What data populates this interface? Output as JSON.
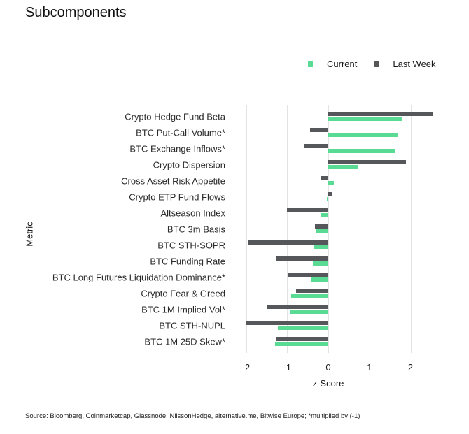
{
  "title": "Subcomponents",
  "legend": [
    {
      "label": "Current",
      "color": "#5ADB93"
    },
    {
      "label": "Last Week",
      "color": "#55575A"
    }
  ],
  "source": "Source: Bloomberg, Coinmarketcap, Glassnode, NilssonHedge, alternative.me, Bitwise Europe; *multiplied by (-1)",
  "chart_data": {
    "type": "bar",
    "orientation": "horizontal",
    "title": "Subcomponents",
    "xlabel": "z-Score",
    "ylabel": "Metric",
    "xlim": [
      -2.2,
      2.6
    ],
    "xticks": [
      -2,
      -1,
      0,
      1,
      2
    ],
    "grid": true,
    "legend_position": "top-right",
    "categories": [
      "Crypto Hedge Fund Beta",
      "BTC Put-Call Volume*",
      "BTC Exchange Inflows*",
      "Crypto Dispersion",
      "Cross Asset Risk Appetite",
      "Crypto ETP Fund Flows",
      "Altseason Index",
      "BTC 3m Basis",
      "BTC STH-SOPR",
      "BTC Funding Rate",
      "BTC Long Futures Liquidation Dominance*",
      "Crypto Fear & Greed",
      "BTC 1M Implied Vol*",
      "BTC STH-NUPL",
      "BTC 1M 25D Skew*"
    ],
    "series": [
      {
        "name": "Current",
        "color": "#5ADB93",
        "values": [
          1.79,
          1.7,
          1.63,
          0.74,
          0.14,
          -0.04,
          -0.17,
          -0.3,
          -0.35,
          -0.37,
          -0.43,
          -0.91,
          -0.92,
          -1.23,
          -1.3
        ]
      },
      {
        "name": "Last Week",
        "color": "#55575A",
        "values": [
          2.55,
          -0.44,
          -0.58,
          1.89,
          -0.19,
          0.1,
          -1.01,
          -0.33,
          -1.96,
          -1.28,
          -0.99,
          -0.79,
          -1.48,
          -1.99,
          -1.28
        ]
      }
    ]
  }
}
